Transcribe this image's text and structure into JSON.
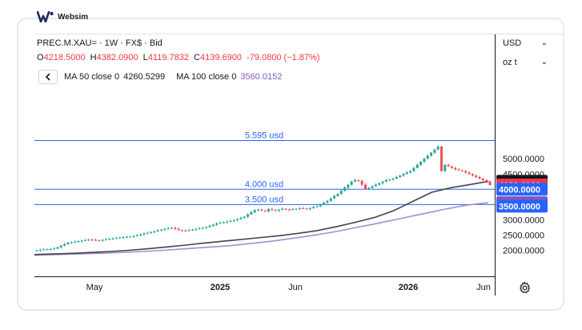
{
  "brand": {
    "name": "Websim"
  },
  "header": {
    "symbol_line": "PREC.M.XAU= · 1W · FX$ · Bid",
    "ohlc": {
      "o_label": "O",
      "o_value": "4218.5000",
      "h_label": "H",
      "h_value": "4382.0900",
      "l_label": "L",
      "l_value": "4119.7832",
      "c_label": "C",
      "c_value": "4139.6900",
      "change": "-79.0800 (−1.87%)"
    },
    "collapse_icon": "chevron-left-icon",
    "ma50_label": "MA 50 close 0",
    "ma50_value": "4260.5299",
    "ma100_label": "MA 100 close 0",
    "ma100_value": "3560.0152"
  },
  "axis_controls": {
    "currency": "USD",
    "unit": "oz t"
  },
  "colors": {
    "up": "#26a69a",
    "down": "#ef5350",
    "ma50": "#444444",
    "ma100": "#a48cd0",
    "hline": "#2962ff"
  },
  "chart_data": {
    "type": "candlestick",
    "y_ticks": [
      "2000.0000",
      "2500.0000",
      "3000.0000",
      "3500.0000",
      "4000.0000",
      "4500.0000",
      "5000.0000"
    ],
    "x_ticks": [
      "May",
      "2025",
      "Jun",
      "2026",
      "Jun"
    ],
    "horizontal_lines": [
      {
        "value": 5595,
        "label": "5.595 usd"
      },
      {
        "value": 4000,
        "label": "4.000 usd"
      },
      {
        "value": 3500,
        "label": "3.500 usd"
      }
    ],
    "price_labels": [
      {
        "value": 4260.5299,
        "text": "4260.5299",
        "color": "#131722"
      },
      {
        "value": 4139.69,
        "text": "4139.6900",
        "color": "#f23645"
      },
      {
        "value": 4000,
        "text": "4000.0000",
        "color": "#2962ff"
      },
      {
        "value": 3560.0152,
        "text": "3560.0152",
        "color": "#7e57c2"
      },
      {
        "value": 3500,
        "text": "3500.0000",
        "color": "#2962ff"
      }
    ],
    "close": [
      2000,
      2015,
      2030,
      2035,
      2040,
      2060,
      2100,
      2150,
      2200,
      2250,
      2260,
      2280,
      2300,
      2320,
      2330,
      2350,
      2340,
      2330,
      2320,
      2340,
      2360,
      2380,
      2390,
      2400,
      2420,
      2430,
      2440,
      2450,
      2470,
      2490,
      2520,
      2550,
      2570,
      2600,
      2620,
      2650,
      2680,
      2700,
      2720,
      2740,
      2700,
      2660,
      2650,
      2640,
      2660,
      2680,
      2700,
      2720,
      2740,
      2760,
      2800,
      2840,
      2880,
      2900,
      2920,
      2940,
      2960,
      2990,
      3020,
      3060,
      3100,
      3180,
      3250,
      3320,
      3330,
      3300,
      3280,
      3350,
      3320,
      3300,
      3330,
      3360,
      3340,
      3330,
      3350,
      3360,
      3380,
      3370,
      3350,
      3380,
      3420,
      3450,
      3500,
      3560,
      3620,
      3700,
      3780,
      3850,
      3950,
      4050,
      4150,
      4250,
      4300,
      4280,
      4150,
      4000,
      4050,
      4100,
      4150,
      4200,
      4250,
      4300,
      4320,
      4350,
      4400,
      4450,
      4500,
      4550,
      4600,
      4700,
      4800,
      4900,
      5000,
      5100,
      5200,
      5300,
      5400,
      4600,
      4800,
      4750,
      4700,
      4650,
      4620,
      4600,
      4550,
      4500,
      4450,
      4400,
      4350,
      4300,
      4250,
      4139.69
    ],
    "ma50": [
      1860,
      1880,
      1900,
      1930,
      1960,
      2000,
      2050,
      2110,
      2170,
      2240,
      2300,
      2360,
      2420,
      2480,
      2560,
      2650,
      2780,
      2920,
      3080,
      3300,
      3600,
      3900,
      4050,
      4150,
      4260.53
    ],
    "ma100": [
      1840,
      1860,
      1880,
      1900,
      1930,
      1960,
      2000,
      2050,
      2100,
      2150,
      2220,
      2300,
      2400,
      2500,
      2620,
      2760,
      2900,
      3050,
      3200,
      3350,
      3480,
      3560.02
    ]
  }
}
